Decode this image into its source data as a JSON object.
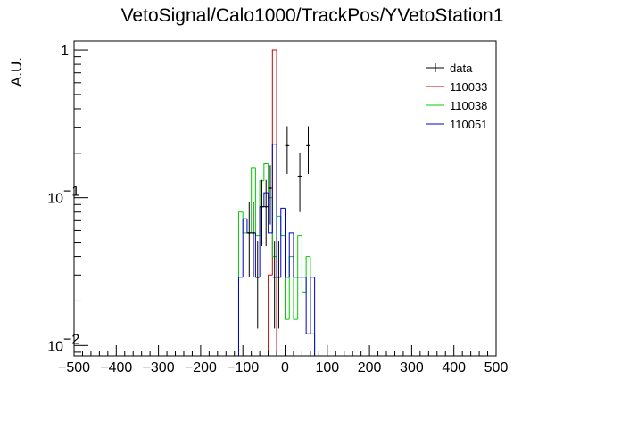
{
  "chart_data": {
    "type": "histogram",
    "title": "VetoSignal/Calo1000/TrackPos/YVetoStation1",
    "xlabel": "",
    "ylabel": "A.U.",
    "xlim": [
      -500,
      500
    ],
    "ylim": [
      0.0085,
      1.15
    ],
    "yscale": "log",
    "bin_width": 10,
    "grid": false,
    "legend_position": "top-right",
    "x_ticks": [
      -500,
      -400,
      -300,
      -200,
      -100,
      0,
      100,
      200,
      300,
      400,
      500
    ],
    "x_tick_labels": [
      "−500",
      "−400",
      "−300",
      "−200",
      "−100",
      "0",
      "100",
      "200",
      "300",
      "400",
      "500"
    ],
    "y_ticks": [
      {
        "value": 1,
        "base": "1",
        "exp": ""
      },
      {
        "value": 0.1,
        "base": "10",
        "exp": "−1"
      },
      {
        "value": 0.01,
        "base": "10",
        "exp": "−2"
      }
    ],
    "series": [
      {
        "name": "data",
        "color": "#000000",
        "style": "points",
        "x": [
          -85,
          -75,
          -65,
          -55,
          -45,
          -35,
          -25,
          -15,
          5,
          35,
          55
        ],
        "y": [
          0.058,
          0.058,
          0.029,
          0.087,
          0.087,
          0.116,
          0.029,
          0.029,
          0.225,
          0.14,
          0.225
        ],
        "err_low": [
          0.029,
          0.029,
          0.016,
          0.04,
          0.04,
          0.05,
          0.016,
          0.016,
          0.08,
          0.06,
          0.08
        ],
        "err_high": [
          0.036,
          0.036,
          0.022,
          0.045,
          0.045,
          0.05,
          0.022,
          0.022,
          0.08,
          0.06,
          0.08
        ]
      },
      {
        "name": "110033",
        "color": "#cc0000",
        "style": "step",
        "x": [
          -35,
          -25
        ],
        "y": [
          0.03,
          1.0
        ]
      },
      {
        "name": "110038",
        "color": "#00cc00",
        "style": "step",
        "x": [
          -105,
          -95,
          -85,
          -75,
          -65,
          -55,
          -45,
          -35,
          -25,
          -15,
          -5,
          5,
          15,
          25,
          35,
          45,
          55,
          65
        ],
        "y": [
          0.08,
          0.058,
          0.058,
          0.16,
          0.055,
          0.13,
          0.17,
          0.1,
          0.04,
          0.075,
          0.055,
          0.015,
          0.04,
          0.015,
          0.055,
          0.023,
          0.04,
          0.012
        ]
      },
      {
        "name": "110051",
        "color": "#0000cc",
        "style": "step",
        "x": [
          -105,
          -95,
          -85,
          -75,
          -65,
          -55,
          -45,
          -35,
          -25,
          -15,
          -5,
          5,
          15,
          25,
          35,
          45,
          55,
          65
        ],
        "y": [
          0.029,
          0.072,
          0.058,
          0.058,
          0.029,
          0.087,
          0.108,
          0.058,
          0.23,
          0.029,
          0.085,
          0.029,
          0.058,
          0.029,
          0.029,
          0.029,
          0.012,
          0.029
        ]
      }
    ]
  }
}
